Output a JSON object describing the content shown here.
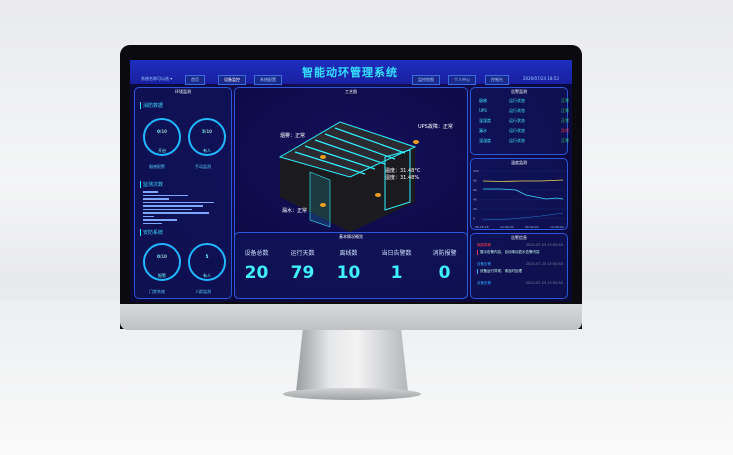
{
  "header": {
    "system_select": "系统名称可以选 ▾",
    "title": "智能动环管理系统",
    "datetime": "2020/07/24 18:53",
    "nav_left": [
      "首页",
      "设备监控",
      "系统配置"
    ],
    "nav_right": [
      "监控地图",
      "个人中心",
      "控制台"
    ]
  },
  "left_panel": {
    "title": "环境监测",
    "fire": {
      "heading": "消防数据",
      "circles": [
        {
          "value": "0",
          "total": "/10",
          "sub": "开启",
          "caption": "烟感报警"
        },
        {
          "value": "5",
          "total": "/10",
          "sub": "有人",
          "caption": "手动监测"
        }
      ]
    },
    "counts": {
      "heading": "监测次数",
      "bars": [
        0.2,
        0.6,
        0.35,
        0.95,
        0.8,
        0.65,
        0.88,
        0.15,
        0.45,
        0.25
      ]
    },
    "security": {
      "heading": "安防系统",
      "circles": [
        {
          "value": "0",
          "total": "/10",
          "sub": "报警",
          "caption": "门禁系统"
        },
        {
          "value": "5",
          "total": "",
          "sub": "有人",
          "caption": "人群监测"
        }
      ]
    }
  },
  "center": {
    "title": "工艺图",
    "labels": {
      "smoke": "烟雾：正常",
      "ups": "UPS故障：正常",
      "temp": "温度：31.48°C",
      "humidity": "湿度：31.48%",
      "leak": "漏水：正常"
    },
    "overview_title": "基本情况概览",
    "stats": [
      {
        "label": "设备总数",
        "value": "20"
      },
      {
        "label": "运行天数",
        "value": "79"
      },
      {
        "label": "离线数",
        "value": "10"
      },
      {
        "label": "当日告警数",
        "value": "1"
      },
      {
        "label": "消防报警",
        "value": "0"
      }
    ]
  },
  "alarm_monitor": {
    "title": "告警监测",
    "rows": [
      {
        "name": "烟感",
        "state": "运行状态",
        "status": "正常",
        "color": "#31d86a"
      },
      {
        "name": "UPS",
        "state": "运行状态",
        "status": "正常",
        "color": "#31d86a"
      },
      {
        "name": "温湿度",
        "state": "运行状态",
        "status": "正常",
        "color": "#31d86a"
      },
      {
        "name": "漏水",
        "state": "运行状态",
        "status": "异常",
        "color": "#ff3a4a"
      },
      {
        "name": "温湿度",
        "state": "运行状态",
        "status": "正常",
        "color": "#31d86a"
      }
    ]
  },
  "temp_chart": {
    "title": "温度监测",
    "yticks": [
      "100",
      "80",
      "60",
      "40",
      "20",
      "0"
    ],
    "xticks": [
      "00:00:18",
      "12:00:00",
      "00:00:00",
      "12:00:00"
    ]
  },
  "alarm_info": {
    "title": "告警信息",
    "items": [
      {
        "type": "烟感报警",
        "time": "2020-07-23 15:50:50",
        "text": "展示告警内容，自动滚动显示告警内容",
        "color": "#ff3a4a"
      },
      {
        "type": "设备告警",
        "time": "2020-07-23 15:50:50",
        "text": "设备运行异常，请及时处理",
        "color": "#2ea8ff"
      },
      {
        "type": "设备告警",
        "time": "2020-07-23 15:50:50",
        "text": "",
        "color": "#2ea8ff"
      }
    ]
  }
}
